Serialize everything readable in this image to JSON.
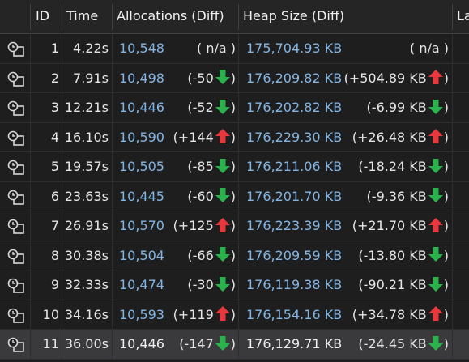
{
  "columns": {
    "id": "ID",
    "time": "Time",
    "allocations": "Allocations (Diff)",
    "heap": "Heap Size (Diff)",
    "last": "La"
  },
  "colors": {
    "link": "#83b5e4",
    "up": "#e8383d",
    "down": "#2bb24c"
  },
  "rows": [
    {
      "id": "1",
      "time": "4.22s",
      "alloc": "10,548",
      "alloc_diff": "( n/a )",
      "alloc_dir": "none",
      "heap": "175,704.93 KB",
      "heap_diff": "( n/a )",
      "heap_dir": "none"
    },
    {
      "id": "2",
      "time": "7.91s",
      "alloc": "10,498",
      "alloc_diff": "(-50",
      "alloc_dir": "down",
      "heap": "176,209.82 KB",
      "heap_diff": "(+504.89 KB",
      "heap_dir": "up"
    },
    {
      "id": "3",
      "time": "12.21s",
      "alloc": "10,446",
      "alloc_diff": "(-52",
      "alloc_dir": "down",
      "heap": "176,202.82 KB",
      "heap_diff": "(-6.99 KB",
      "heap_dir": "down"
    },
    {
      "id": "4",
      "time": "16.10s",
      "alloc": "10,590",
      "alloc_diff": "(+144",
      "alloc_dir": "up",
      "heap": "176,229.30 KB",
      "heap_diff": "(+26.48 KB",
      "heap_dir": "up"
    },
    {
      "id": "5",
      "time": "19.57s",
      "alloc": "10,505",
      "alloc_diff": "(-85",
      "alloc_dir": "down",
      "heap": "176,211.06 KB",
      "heap_diff": "(-18.24 KB",
      "heap_dir": "down"
    },
    {
      "id": "6",
      "time": "23.63s",
      "alloc": "10,445",
      "alloc_diff": "(-60",
      "alloc_dir": "down",
      "heap": "176,201.70 KB",
      "heap_diff": "(-9.36 KB",
      "heap_dir": "down"
    },
    {
      "id": "7",
      "time": "26.91s",
      "alloc": "10,570",
      "alloc_diff": "(+125",
      "alloc_dir": "up",
      "heap": "176,223.39 KB",
      "heap_diff": "(+21.70 KB",
      "heap_dir": "up"
    },
    {
      "id": "8",
      "time": "30.38s",
      "alloc": "10,504",
      "alloc_diff": "(-66",
      "alloc_dir": "down",
      "heap": "176,209.59 KB",
      "heap_diff": "(-13.80 KB",
      "heap_dir": "down"
    },
    {
      "id": "9",
      "time": "32.33s",
      "alloc": "10,474",
      "alloc_diff": "(-30",
      "alloc_dir": "down",
      "heap": "176,119.38 KB",
      "heap_diff": "(-90.21 KB",
      "heap_dir": "down"
    },
    {
      "id": "10",
      "time": "34.16s",
      "alloc": "10,593",
      "alloc_diff": "(+119",
      "alloc_dir": "up",
      "heap": "176,154.16 KB",
      "heap_diff": "(+34.78 KB",
      "heap_dir": "up"
    },
    {
      "id": "11",
      "time": "36.00s",
      "alloc": "10,446",
      "alloc_diff": "(-147",
      "alloc_dir": "down",
      "heap": "176,129.71 KB",
      "heap_diff": "(-24.45 KB",
      "heap_dir": "down",
      "selected": true
    }
  ]
}
